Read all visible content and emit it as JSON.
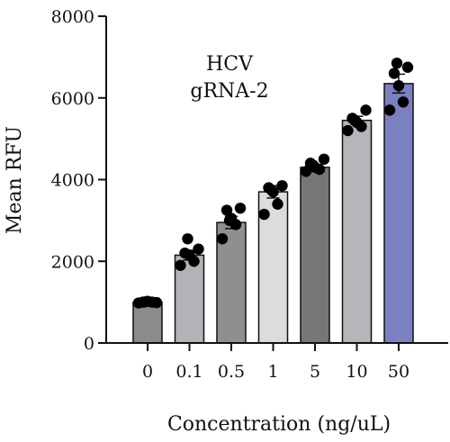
{
  "chart_data": {
    "type": "bar",
    "annotation": [
      "HCV",
      "gRNA-2"
    ],
    "xlabel": "Concentration (ng/uL)",
    "ylabel": "Mean RFU",
    "ylim": [
      0,
      8000
    ],
    "yticks": [
      0,
      2000,
      4000,
      6000,
      8000
    ],
    "categories": [
      "0",
      "0.1",
      "0.5",
      "1",
      "5",
      "10",
      "50"
    ],
    "values": [
      1000,
      2150,
      2950,
      3700,
      4300,
      5450,
      6350
    ],
    "errors": [
      30,
      120,
      150,
      150,
      70,
      100,
      230
    ],
    "points": [
      [
        980,
        1000,
        1020,
        1000,
        990,
        1010
      ],
      [
        1900,
        2000,
        2150,
        2200,
        2300,
        2550
      ],
      [
        2550,
        2900,
        3050,
        3250,
        3300,
        3000
      ],
      [
        3150,
        3400,
        3700,
        3800,
        3850,
        3750
      ],
      [
        4200,
        4250,
        4300,
        4400,
        4500,
        4350
      ],
      [
        5200,
        5300,
        5400,
        5500,
        5700,
        5450
      ],
      [
        5700,
        5900,
        6300,
        6600,
        6750,
        6850
      ]
    ],
    "bar_colors": [
      "#8b8b8b",
      "#b3b3b7",
      "#8f8f8f",
      "#dcdcdc",
      "#777777",
      "#b6b6ba",
      "#7b80c0"
    ],
    "point_color": "#000000",
    "grid": false,
    "legend": "none"
  }
}
